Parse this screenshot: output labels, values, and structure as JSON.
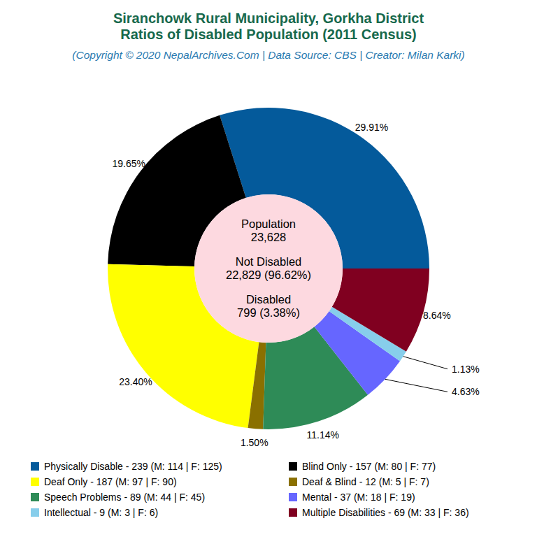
{
  "chart_data": {
    "type": "pie",
    "title": [
      "Siranchowk Rural Municipality, Gorkha District",
      "Ratios of Disabled Population (2011 Census)"
    ],
    "subtitle": "(Copyright © 2020 NepalArchives.Com | Data Source: CBS | Creator: Milan Karki)",
    "annotations": [
      "Population",
      "23,628",
      "Not Disabled",
      "22,829 (96.62%)",
      "Disabled",
      "799 (3.38%)"
    ],
    "categories": [
      "Physically Disable - 239 (M: 114 | F: 125)",
      "Blind Only - 157 (M: 80 | F: 77)",
      "Deaf Only - 187 (M: 97 | F: 90)",
      "Deaf & Blind - 12 (M: 5 | F: 7)",
      "Speech Problems - 89 (M: 44 | F: 45)",
      "Mental - 37 (M: 18 | F: 19)",
      "Intellectual - 9 (M: 3 | F: 6)",
      "Multiple Disabilities - 69 (M: 33 | F: 36)"
    ],
    "values": [
      29.91,
      19.65,
      23.4,
      1.5,
      11.14,
      4.63,
      1.13,
      8.64
    ],
    "value_labels": [
      "29.91%",
      "19.65%",
      "23.40%",
      "1.50%",
      "11.14%",
      "4.63%",
      "1.13%",
      "8.64%"
    ],
    "colors": [
      "#045a9b",
      "#000000",
      "#ffff00",
      "#8a7000",
      "#2e8b57",
      "#6666ff",
      "#87ceeb",
      "#800020"
    ],
    "data_labels": true,
    "legend": "bottom"
  }
}
